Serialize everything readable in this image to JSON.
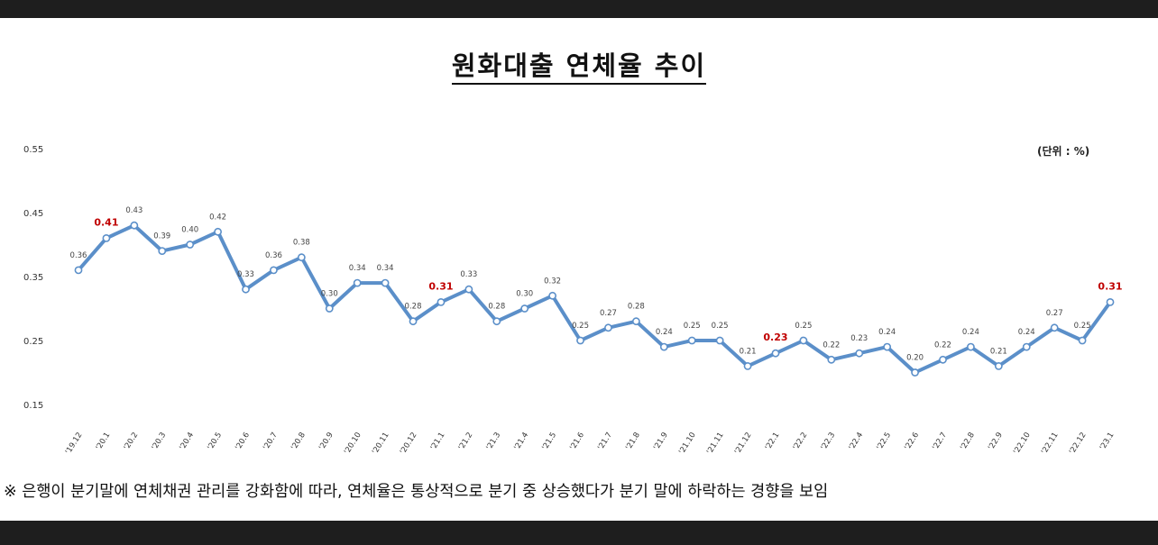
{
  "chart_data": {
    "type": "line",
    "title": "원화대출 연체율 추이",
    "unit_label": "(단위 : %)",
    "yticks": [
      "0.55",
      "0.45",
      "0.35",
      "0.25",
      "0.15"
    ],
    "ylim": [
      0.15,
      0.55
    ],
    "grid": false,
    "line_color": "#5B8FC9",
    "highlight_color": "#C00000",
    "x": [
      "'19.12",
      "'20.1",
      "'20.2",
      "'20.3",
      "'20.4",
      "'20.5",
      "'20.6",
      "'20.7",
      "'20.8",
      "'20.9",
      "'20.10",
      "'20.11",
      "'20.12",
      "'21.1",
      "'21.2",
      "'21.3",
      "'21.4",
      "'21.5",
      "'21.6",
      "'21.7",
      "'21.8",
      "'21.9",
      "'21.10",
      "'21.11",
      "'21.12",
      "'22.1",
      "'22.2",
      "'22.3",
      "'22.4",
      "'22.5",
      "'22.6",
      "'22.7",
      "'22.8",
      "'22.9",
      "'22.10",
      "'22.11",
      "'22.12",
      "'23.1"
    ],
    "values": [
      0.36,
      0.41,
      0.43,
      0.39,
      0.4,
      0.42,
      0.33,
      0.36,
      0.38,
      0.3,
      0.34,
      0.34,
      0.28,
      0.31,
      0.33,
      0.28,
      0.3,
      0.32,
      0.25,
      0.27,
      0.28,
      0.24,
      0.25,
      0.25,
      0.21,
      0.23,
      0.25,
      0.22,
      0.23,
      0.24,
      0.2,
      0.22,
      0.24,
      0.21,
      0.24,
      0.27,
      0.25,
      0.31
    ],
    "labels": [
      "0.36",
      "0.41",
      "0.43",
      "0.39",
      "0.40",
      "0.42",
      "0.33",
      "0.36",
      "0.38",
      "0.30",
      "0.34",
      "0.34",
      "0.28",
      "0.31",
      "0.33",
      "0.28",
      "0.30",
      "0.32",
      "0.25",
      "0.27",
      "0.28",
      "0.24",
      "0.25",
      "0.25",
      "0.21",
      "0.23",
      "0.25",
      "0.22",
      "0.23",
      "0.24",
      "0.20",
      "0.22",
      "0.24",
      "0.21",
      "0.24",
      "0.27",
      "0.25",
      "0.31"
    ],
    "highlight_indices": [
      1,
      13,
      25,
      37
    ]
  },
  "footnote": "※ 은행이 분기말에 연체채권 관리를 강화함에 따라, 연체율은 통상적으로 분기 중 상승했다가 분기 말에 하락하는 경향을 보임"
}
